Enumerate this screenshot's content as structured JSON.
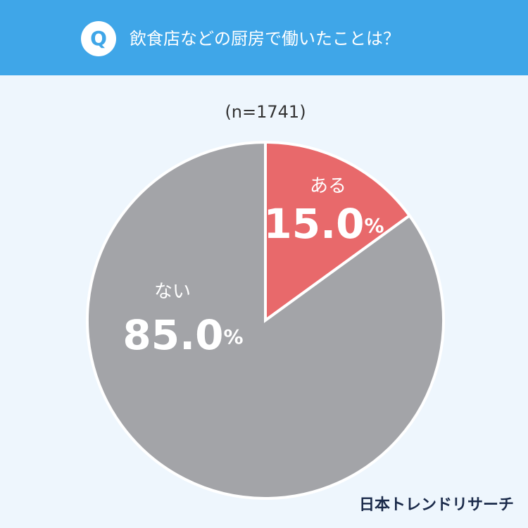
{
  "header": {
    "badge": "Q",
    "title": "飲食店などの厨房で働いたことは？"
  },
  "chart_data": {
    "type": "pie",
    "subtitle": "(n=1741)",
    "categories": [
      "ある",
      "ない"
    ],
    "values": [
      15.0,
      85.0
    ],
    "value_labels": [
      "15.0%",
      "85.0%"
    ],
    "colors": [
      "#e8696b",
      "#a3a4a8"
    ]
  },
  "footer": {
    "brand": "日本トレンドリサーチ"
  }
}
